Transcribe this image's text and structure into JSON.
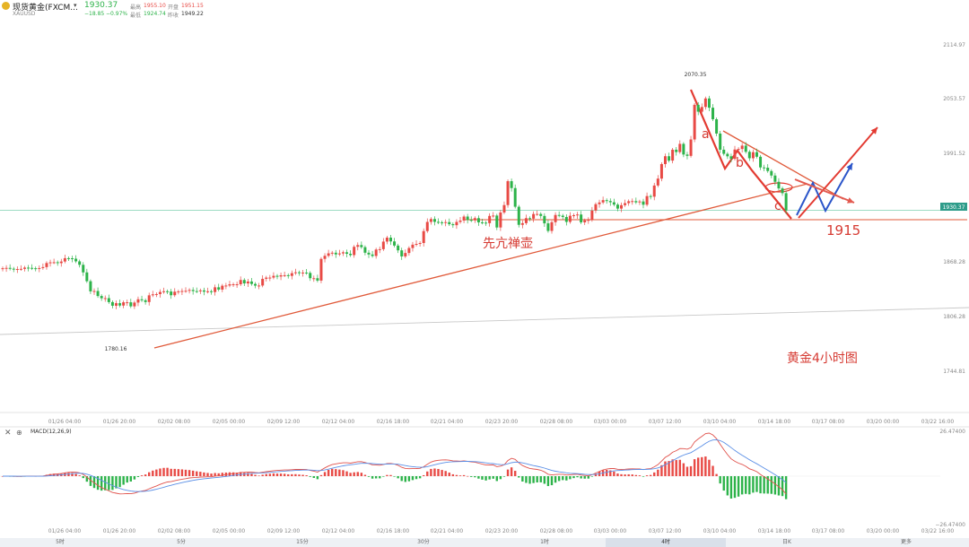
{
  "header": {
    "symbol_name": "现货黄金(FXCM...",
    "symbol_code": "XAUUSD",
    "last_price": "1930.37",
    "change": "−18.85",
    "change_pct": "−0.97%",
    "high_label": "最高",
    "high": "1955.10",
    "open_label": "开盘",
    "open": "1951.15",
    "low_label": "最低",
    "low": "1924.74",
    "prev_close_label": "昨收",
    "prev_close": "1949.22"
  },
  "price_axis": {
    "ticks": [
      {
        "label": "2114.97",
        "value": 2114.97
      },
      {
        "label": "2053.57",
        "value": 2053.57
      },
      {
        "label": "1991.52",
        "value": 1991.52
      },
      {
        "label": "1868.28",
        "value": 1868.28
      },
      {
        "label": "1806.28",
        "value": 1806.28
      },
      {
        "label": "1744.81",
        "value": 1744.81
      }
    ],
    "current_price_badge": "1930.37"
  },
  "time_axis": {
    "ticks": [
      "01/26 04:00",
      "01/26 20:00",
      "02/02 08:00",
      "02/05 00:00",
      "02/09 12:00",
      "02/12 04:00",
      "02/16 18:00",
      "02/21 04:00",
      "02/23 20:00",
      "02/28 08:00",
      "03/03 00:00",
      "03/07 12:00",
      "03/10 04:00",
      "03/14 18:00",
      "03/17 08:00",
      "03/20 00:00",
      "03/22 16:00"
    ]
  },
  "annotations": {
    "high_marker": "2070.35",
    "low_marker": "1780.16",
    "wave_a": "a",
    "wave_b": "b",
    "wave_c": "c",
    "target_level": "1915",
    "text_left": "先亢禅壶",
    "chart_caption": "黄金4小时图"
  },
  "macd": {
    "label": "MACD(12,26,9)",
    "axis_top": "26.47400",
    "axis_bottom": "−26.47400"
  },
  "timeframes": {
    "items": [
      "5时",
      "5分",
      "15分",
      "30分",
      "1时",
      "4时",
      "日K"
    ],
    "active_index": 5,
    "more_label": "更多"
  },
  "colors": {
    "up": "#e84a45",
    "down": "#2db34a",
    "blue_arrow": "#2b55c9",
    "trendline": "#e05a3a",
    "current_line": "#7fd0b0"
  },
  "chart_data": {
    "type": "candlestick",
    "title": "",
    "price_range": [
      1735,
      2135
    ],
    "closes": [
      1864.8,
      1865.2,
      1864.3,
      1863.4,
      1863.9,
      1864.1,
      1865.5,
      1865.2,
      1864.8,
      1864.3,
      1865,
      1866.1,
      1870.7,
      1871.5,
      1871.6,
      1870.6,
      1872.4,
      1876.2,
      1876.1,
      1875.6,
      1872.6,
      1868.7,
      1860.1,
      1850.1,
      1838.6,
      1839,
      1833.3,
      1830.8,
      1830.9,
      1826.4,
      1822.3,
      1825.2,
      1822.5,
      1826.2,
      1826.2,
      1821.6,
      1825.9,
      1829.6,
      1828.5,
      1826.5,
      1834.1,
      1835.2,
      1835.5,
      1837.9,
      1838.7,
      1838.4,
      1834.2,
      1838.2,
      1838.5,
      1839,
      1839.2,
      1840.2,
      1838.9,
      1838.6,
      1839.7,
      1838.2,
      1838.7,
      1837.8,
      1843.2,
      1840.6,
      1845,
      1845.2,
      1846.6,
      1846.6,
      1846.6,
      1851.5,
      1847.6,
      1849.8,
      1847,
      1845.1,
      1845.2,
      1852.8,
      1854.2,
      1854.2,
      1856.2,
      1855.4,
      1856.8,
      1856.9,
      1856.1,
      1859.2,
      1860.2,
      1859.3,
      1859.9,
      1859.5,
      1853.5,
      1853.5,
      1850.8,
      1875.4,
      1878.9,
      1881.7,
      1882.4,
      1880.5,
      1881.6,
      1882.9,
      1881.2,
      1879.7,
      1889.1,
      1891.1,
      1888.7,
      1882.4,
      1880.4,
      1878.7,
      1886,
      1886.4,
      1895,
      1899.5,
      1895.2,
      1890.5,
      1885.1,
      1878.2,
      1882.1,
      1887.7,
      1891.5,
      1892.4,
      1893.4,
      1906.9,
      1917.3,
      1920.6,
      1917.4,
      1916.8,
      1916.4,
      1917.1,
      1914.7,
      1913.6,
      1917.3,
      1918.9,
      1923.4,
      1919.6,
      1919.1,
      1921.6,
      1916.8,
      1916.5,
      1915.9,
      1924.1,
      1924.5,
      1911,
      1928,
      1936.4,
      1963.5,
      1955.7,
      1934.5,
      1914,
      1915.9,
      1921.6,
      1921,
      1926.3,
      1926.3,
      1924.1,
      1915.7,
      1907.1,
      1917,
      1925.2,
      1924.4,
      1922.9,
      1917.3,
      1924.3,
      1924.9,
      1925.7,
      1916.8,
      1919.1,
      1919.6,
      1930.2,
      1937.4,
      1939.4,
      1942,
      1941,
      1939.6,
      1936.9,
      1932.4,
      1936.3,
      1938.6,
      1940.8,
      1940.9,
      1939.5,
      1940.5,
      1936.8,
      1946.6,
      1945.9,
      1958.6,
      1966.4,
      1982.9,
      1991.8,
      1986.8,
      1999.2,
      1996.5,
      2005.8,
      1993.7,
      1992.2,
      2010.8,
      2050.1,
      2042.3,
      2047.6,
      2057.3,
      2046.8,
      2033.7,
      2017.5,
      1999.2,
      1994.5,
      1991.7,
      1988.9,
      1999.4,
      2000,
      2003.8,
      1996.8,
      1989.5,
      1996.4,
      1991.2,
      1979.1,
      1978.8,
      1975,
      1969.9,
      1962.8,
      1955.3,
      1949.9,
      1930.4
    ]
  }
}
